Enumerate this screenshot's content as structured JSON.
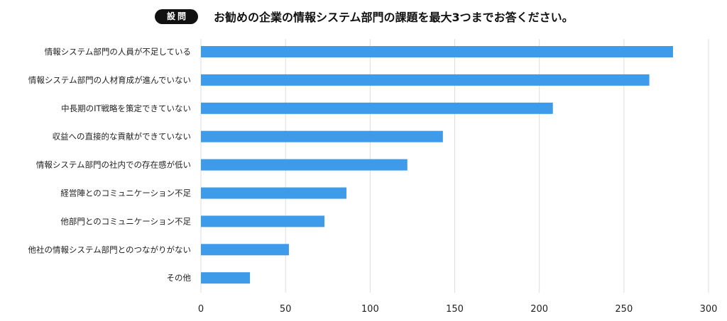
{
  "header": {
    "badge": "設問",
    "question": "お勧めの企業の情報システム部門の課題を最大3つまでお答ください。"
  },
  "chart_data": {
    "type": "bar",
    "orientation": "horizontal",
    "categories": [
      "情報システム部門の人員が不足している",
      "情報システム部門の人材育成が進んでいない",
      "中長期のIT戦略を策定できていない",
      "収益への直接的な貢献ができていない",
      "情報システム部門の社内での存在感が低い",
      "経営陣とのコミュニケーション不足",
      "他部門とのコミュニケーション不足",
      "他社の情報システム部門とのつながりがない",
      "その他"
    ],
    "values": [
      279,
      265,
      208,
      143,
      122,
      86,
      73,
      52,
      29
    ],
    "xlim": [
      0,
      300
    ],
    "xticks": [
      0,
      50,
      100,
      150,
      200,
      250,
      300
    ],
    "xlabel": "",
    "ylabel": "",
    "grid": true,
    "bar_color": "#3d9be9",
    "grid_color": "#dddddd"
  }
}
